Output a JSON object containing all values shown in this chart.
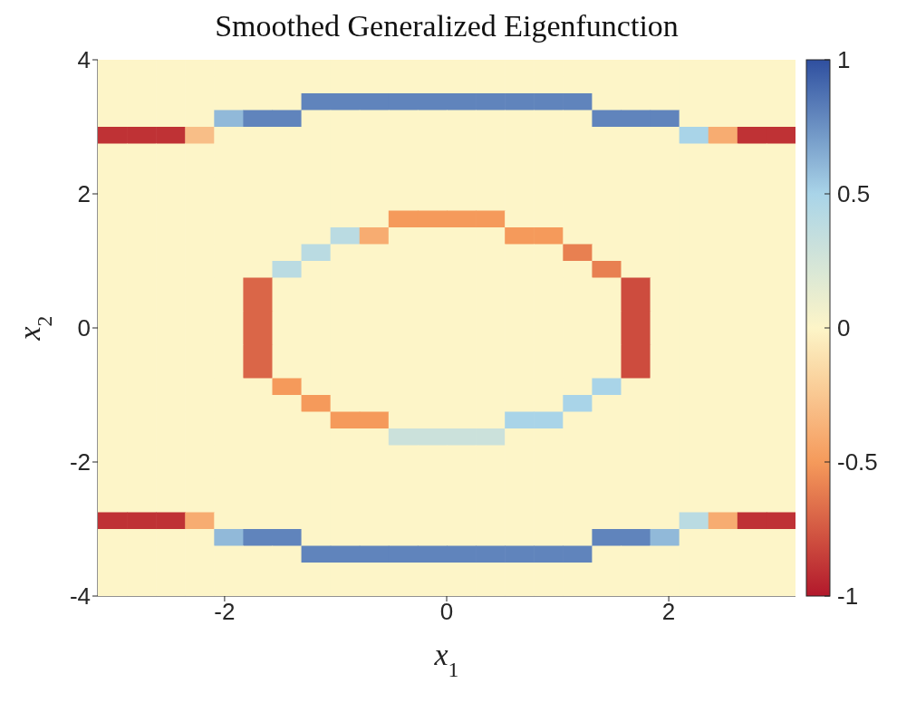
{
  "chart_data": {
    "type": "heatmap",
    "title": "Smoothed Generalized Eigenfunction",
    "xlabel": "x$_{1}$",
    "ylabel": "x$_{2}$",
    "xlim": [
      -3.1416,
      3.1416
    ],
    "ylim": [
      -4,
      4
    ],
    "xticks": [
      -2,
      0,
      2
    ],
    "yticks": [
      -4,
      -2,
      0,
      2,
      4
    ],
    "clim": [
      -1,
      1
    ],
    "cticks": [
      -1,
      -0.5,
      0,
      0.5,
      1
    ],
    "cells": [
      [
        0,
        0,
        0,
        0,
        0,
        0,
        0,
        0,
        0,
        0,
        0,
        0,
        0,
        0,
        0,
        0,
        0,
        0,
        0,
        0,
        0,
        0,
        0,
        0
      ],
      [
        0,
        0,
        0,
        0,
        0,
        0,
        0,
        0,
        0,
        0,
        0,
        0,
        0,
        0,
        0,
        0,
        0,
        0,
        0,
        0,
        0,
        0,
        0,
        0
      ],
      [
        0,
        0,
        0,
        0,
        0,
        0,
        0,
        0.8,
        0.8,
        0.8,
        0.8,
        0.8,
        0.8,
        0.8,
        0.8,
        0.8,
        0.8,
        0,
        0,
        0,
        0,
        0,
        0,
        0
      ],
      [
        0,
        0,
        0,
        0,
        0.6,
        0.8,
        0.8,
        0,
        0,
        0,
        0,
        0,
        0,
        0,
        0,
        0,
        0,
        0.8,
        0.8,
        0.8,
        0,
        0,
        0,
        0
      ],
      [
        -0.9,
        -0.9,
        -0.9,
        -0.3,
        0,
        0,
        0,
        0,
        0,
        0,
        0,
        0,
        0,
        0,
        0,
        0,
        0,
        0,
        0,
        0,
        0.5,
        -0.4,
        -0.9,
        -0.9
      ],
      [
        0,
        0,
        0,
        0,
        0,
        0,
        0,
        0,
        0,
        0,
        0,
        0,
        0,
        0,
        0,
        0,
        0,
        0,
        0,
        0,
        0,
        0,
        0,
        0
      ],
      [
        0,
        0,
        0,
        0,
        0,
        0,
        0,
        0,
        0,
        0,
        0,
        0,
        0,
        0,
        0,
        0,
        0,
        0,
        0,
        0,
        0,
        0,
        0,
        0
      ],
      [
        0,
        0,
        0,
        0,
        0,
        0,
        0,
        0,
        0,
        0,
        0,
        0,
        0,
        0,
        0,
        0,
        0,
        0,
        0,
        0,
        0,
        0,
        0,
        0
      ],
      [
        0,
        0,
        0,
        0,
        0,
        0,
        0,
        0,
        0,
        0,
        0,
        0,
        0,
        0,
        0,
        0,
        0,
        0,
        0,
        0,
        0,
        0,
        0,
        0
      ],
      [
        0,
        0,
        0,
        0,
        0,
        0,
        0,
        0,
        0,
        0,
        -0.5,
        -0.5,
        -0.5,
        -0.5,
        0,
        0,
        0,
        0,
        0,
        0,
        0,
        0,
        0,
        0
      ],
      [
        0,
        0,
        0,
        0,
        0,
        0,
        0,
        0,
        0.4,
        -0.4,
        0,
        0,
        0,
        0,
        -0.5,
        -0.5,
        0,
        0,
        0,
        0,
        0,
        0,
        0,
        0
      ],
      [
        0,
        0,
        0,
        0,
        0,
        0,
        0,
        0.4,
        0,
        0,
        0,
        0,
        0,
        0,
        0,
        0,
        -0.6,
        0,
        0,
        0,
        0,
        0,
        0,
        0
      ],
      [
        0,
        0,
        0,
        0,
        0,
        0,
        0.4,
        0,
        0,
        0,
        0,
        0,
        0,
        0,
        0,
        0,
        0,
        -0.6,
        0,
        0,
        0,
        0,
        0,
        0
      ],
      [
        0,
        0,
        0,
        0,
        0,
        -0.7,
        0,
        0,
        0,
        0,
        0,
        0,
        0,
        0,
        0,
        0,
        0,
        0,
        -0.8,
        0,
        0,
        0,
        0,
        0
      ],
      [
        0,
        0,
        0,
        0,
        0,
        -0.7,
        0,
        0,
        0,
        0,
        0,
        0,
        0,
        0,
        0,
        0,
        0,
        0,
        -0.8,
        0,
        0,
        0,
        0,
        0
      ],
      [
        0,
        0,
        0,
        0,
        0,
        -0.7,
        0,
        0,
        0,
        0,
        0,
        0,
        0,
        0,
        0,
        0,
        0,
        0,
        -0.8,
        0,
        0,
        0,
        0,
        0
      ],
      [
        0,
        0,
        0,
        0,
        0,
        -0.7,
        0,
        0,
        0,
        0,
        0,
        0,
        0,
        0,
        0,
        0,
        0,
        0,
        -0.8,
        0,
        0,
        0,
        0,
        0
      ],
      [
        0,
        0,
        0,
        0,
        0,
        -0.7,
        0,
        0,
        0,
        0,
        0,
        0,
        0,
        0,
        0,
        0,
        0,
        0,
        -0.8,
        0,
        0,
        0,
        0,
        0
      ],
      [
        0,
        0,
        0,
        0,
        0,
        -0.7,
        0,
        0,
        0,
        0,
        0,
        0,
        0,
        0,
        0,
        0,
        0,
        0,
        -0.8,
        0,
        0,
        0,
        0,
        0
      ],
      [
        0,
        0,
        0,
        0,
        0,
        0,
        -0.5,
        0,
        0,
        0,
        0,
        0,
        0,
        0,
        0,
        0,
        0,
        0.5,
        0,
        0,
        0,
        0,
        0,
        0
      ],
      [
        0,
        0,
        0,
        0,
        0,
        0,
        0,
        -0.5,
        0,
        0,
        0,
        0,
        0,
        0,
        0,
        0,
        0.5,
        0,
        0,
        0,
        0,
        0,
        0,
        0
      ],
      [
        0,
        0,
        0,
        0,
        0,
        0,
        0,
        0,
        -0.5,
        -0.5,
        0,
        0,
        0,
        0,
        0.5,
        0.5,
        0,
        0,
        0,
        0,
        0,
        0,
        0,
        0
      ],
      [
        0,
        0,
        0,
        0,
        0,
        0,
        0,
        0,
        0,
        0,
        0.3,
        0.3,
        0.3,
        0.3,
        0,
        0,
        0,
        0,
        0,
        0,
        0,
        0,
        0,
        0
      ],
      [
        0,
        0,
        0,
        0,
        0,
        0,
        0,
        0,
        0,
        0,
        0,
        0,
        0,
        0,
        0,
        0,
        0,
        0,
        0,
        0,
        0,
        0,
        0,
        0
      ],
      [
        0,
        0,
        0,
        0,
        0,
        0,
        0,
        0,
        0,
        0,
        0,
        0,
        0,
        0,
        0,
        0,
        0,
        0,
        0,
        0,
        0,
        0,
        0,
        0
      ],
      [
        0,
        0,
        0,
        0,
        0,
        0,
        0,
        0,
        0,
        0,
        0,
        0,
        0,
        0,
        0,
        0,
        0,
        0,
        0,
        0,
        0,
        0,
        0,
        0
      ],
      [
        0,
        0,
        0,
        0,
        0,
        0,
        0,
        0,
        0,
        0,
        0,
        0,
        0,
        0,
        0,
        0,
        0,
        0,
        0,
        0,
        0,
        0,
        0,
        0
      ],
      [
        -0.9,
        -0.9,
        -0.9,
        -0.4,
        0,
        0,
        0,
        0,
        0,
        0,
        0,
        0,
        0,
        0,
        0,
        0,
        0,
        0,
        0,
        0,
        0.4,
        -0.4,
        -0.9,
        -0.9
      ],
      [
        0,
        0,
        0,
        0,
        0.6,
        0.8,
        0.8,
        0,
        0,
        0,
        0,
        0,
        0,
        0,
        0,
        0,
        0,
        0.8,
        0.8,
        0.6,
        0,
        0,
        0,
        0
      ],
      [
        0,
        0,
        0,
        0,
        0,
        0,
        0,
        0.8,
        0.8,
        0.8,
        0.8,
        0.8,
        0.8,
        0.8,
        0.8,
        0.8,
        0.8,
        0,
        0,
        0,
        0,
        0,
        0,
        0
      ],
      [
        0,
        0,
        0,
        0,
        0,
        0,
        0,
        0,
        0,
        0,
        0,
        0,
        0,
        0,
        0,
        0,
        0,
        0,
        0,
        0,
        0,
        0,
        0,
        0
      ],
      [
        0,
        0,
        0,
        0,
        0,
        0,
        0,
        0,
        0,
        0,
        0,
        0,
        0,
        0,
        0,
        0,
        0,
        0,
        0,
        0,
        0,
        0,
        0,
        0
      ]
    ]
  }
}
